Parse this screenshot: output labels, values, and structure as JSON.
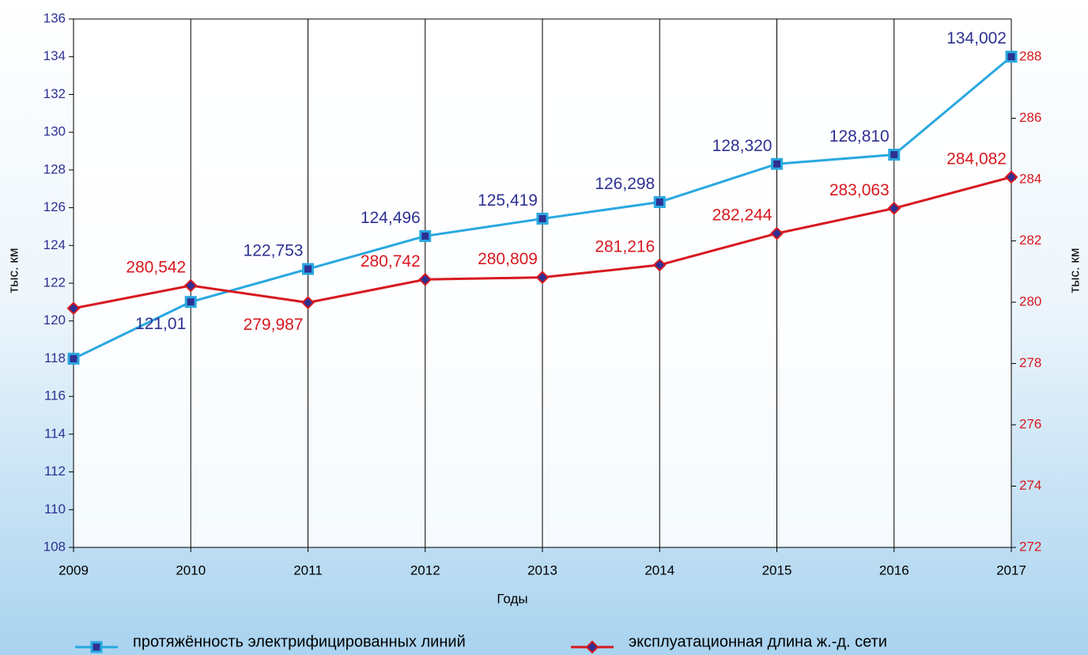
{
  "chart_data": {
    "type": "line",
    "x": [
      2009,
      2010,
      2011,
      2012,
      2013,
      2014,
      2015,
      2016,
      2017
    ],
    "xlim": [
      2009,
      2017
    ],
    "xticks": [
      2009,
      2010,
      2011,
      2012,
      2013,
      2014,
      2015,
      2016,
      2017
    ],
    "xlabel": "Годы",
    "ylabel": "тыс. км",
    "y2label": "тыс. км",
    "ylim": [
      108,
      136
    ],
    "yticks": [
      108,
      110,
      112,
      114,
      116,
      118,
      120,
      122,
      124,
      126,
      128,
      130,
      132,
      134,
      136
    ],
    "y2lim": [
      272,
      289.24
    ],
    "y2ticks": [
      272,
      274,
      276,
      278,
      280,
      282,
      284,
      286,
      288
    ],
    "grid": "x",
    "legend": "bottom",
    "series": [
      {
        "name": "протяжённость электрифицированных линий",
        "color": "#29a8e0",
        "marker": "square",
        "values": [
          118.0,
          121.01,
          122.753,
          124.496,
          125.419,
          126.298,
          128.32,
          128.81,
          134.002
        ],
        "value_labels": [
          null,
          "121,01",
          "122,753",
          "124,496",
          "125,419",
          "126,298",
          "128,320",
          "128,810",
          "134,002"
        ]
      },
      {
        "name": "эксплуатационная длина ж.-д. сети",
        "color": "#d7191f",
        "marker": "diamond",
        "axis": "y2",
        "values": [
          279.8,
          280.542,
          279.987,
          280.742,
          280.809,
          281.216,
          282.244,
          283.063,
          284.082
        ],
        "value_labels": [
          null,
          "280,542",
          "279,987",
          "280,742",
          "280,809",
          "281,216",
          "282,244",
          "283,063",
          "284,082"
        ]
      }
    ]
  }
}
